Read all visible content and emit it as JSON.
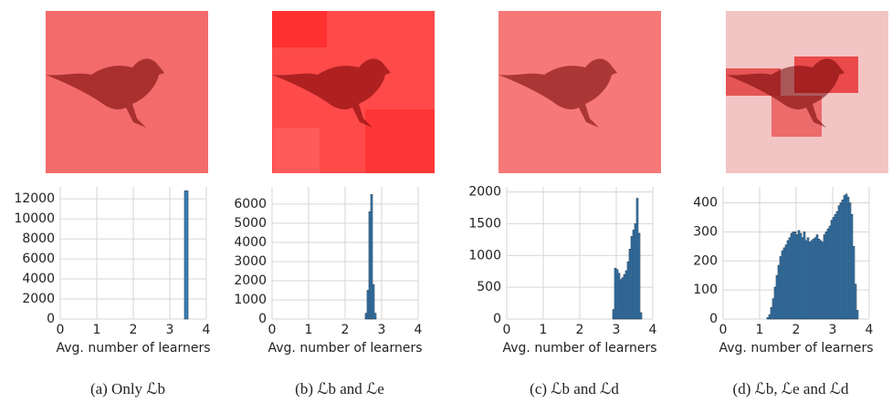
{
  "chart_data": [
    {
      "type": "histogram",
      "caption": "(a) Only ℒb",
      "xlabel": "Avg. number of learners",
      "color": "#3a80b8",
      "bins": [
        3.4,
        3.5
      ],
      "counts": [
        12800
      ],
      "xlim": [
        0,
        4
      ],
      "ylim": [
        0,
        13200
      ],
      "xticks": [
        0,
        1,
        2,
        3,
        4
      ],
      "yticks": [
        0,
        2000,
        4000,
        6000,
        8000,
        10000,
        12000
      ],
      "grid": true
    },
    {
      "type": "histogram",
      "caption": "(b) ℒb and ℒe",
      "xlabel": "Avg. number of learners",
      "color": "#3a80b8",
      "bins": [
        2.55,
        2.6,
        2.65,
        2.7,
        2.75,
        2.8,
        2.85
      ],
      "counts": [
        300,
        1500,
        5600,
        6500,
        1800,
        300
      ],
      "xlim": [
        0,
        4
      ],
      "ylim": [
        0,
        6900
      ],
      "xticks": [
        0,
        1,
        2,
        3,
        4
      ],
      "yticks": [
        0,
        1000,
        2000,
        3000,
        4000,
        5000,
        6000
      ],
      "grid": true
    },
    {
      "type": "histogram",
      "caption": "(c) ℒb and ℒd",
      "xlabel": "Avg. number of learners",
      "color": "#3a80b8",
      "bins": [
        2.9,
        2.95,
        3.0,
        3.05,
        3.1,
        3.15,
        3.2,
        3.25,
        3.3,
        3.35,
        3.4,
        3.45,
        3.5,
        3.55,
        3.6,
        3.65,
        3.7
      ],
      "counts": [
        150,
        800,
        780,
        720,
        620,
        650,
        700,
        760,
        900,
        1100,
        1300,
        1400,
        1500,
        1900,
        1350,
        100
      ],
      "xlim": [
        0,
        4
      ],
      "ylim": [
        0,
        2080
      ],
      "xticks": [
        0,
        1,
        2,
        3,
        4
      ],
      "yticks": [
        0,
        500,
        1000,
        1500,
        2000
      ],
      "grid": true
    },
    {
      "type": "histogram",
      "caption": "(d) ℒb, ℒe and ℒd",
      "xlabel": "Avg. number of learners",
      "color": "#3a80b8",
      "bins": [
        1.2,
        1.25,
        1.3,
        1.35,
        1.4,
        1.45,
        1.5,
        1.55,
        1.6,
        1.65,
        1.7,
        1.75,
        1.8,
        1.85,
        1.9,
        1.95,
        2.0,
        2.05,
        2.1,
        2.15,
        2.2,
        2.25,
        2.3,
        2.35,
        2.4,
        2.45,
        2.5,
        2.55,
        2.6,
        2.65,
        2.7,
        2.75,
        2.8,
        2.85,
        2.9,
        2.95,
        3.0,
        3.05,
        3.1,
        3.15,
        3.2,
        3.25,
        3.3,
        3.35,
        3.4,
        3.45,
        3.5,
        3.55,
        3.6,
        3.65,
        3.7
      ],
      "counts": [
        5,
        15,
        40,
        70,
        110,
        150,
        185,
        215,
        235,
        245,
        255,
        270,
        280,
        295,
        300,
        300,
        290,
        305,
        295,
        280,
        300,
        270,
        280,
        265,
        270,
        275,
        280,
        290,
        275,
        270,
        265,
        290,
        300,
        310,
        320,
        340,
        350,
        360,
        370,
        390,
        400,
        410,
        425,
        430,
        420,
        400,
        360,
        250,
        120,
        30
      ],
      "xlim": [
        0,
        4
      ],
      "ylim": [
        0,
        455
      ],
      "xticks": [
        0,
        1,
        2,
        3,
        4
      ],
      "yticks": [
        0,
        100,
        200,
        300,
        400
      ],
      "grid": true
    }
  ]
}
